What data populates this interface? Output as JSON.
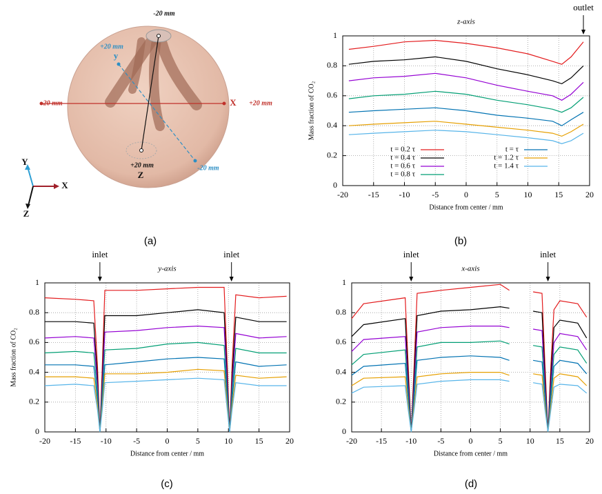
{
  "panel_a": {
    "labels": [
      "-20 mm",
      "+20 mm",
      "y",
      "-20 mm",
      "X",
      "+20 mm",
      "-20 mm",
      "+20 mm",
      "Z",
      "Y",
      "X",
      "Z"
    ]
  },
  "captions": [
    "(a)",
    "(b)",
    "(c)",
    "(d)"
  ],
  "chart_data": [
    {
      "type": "line",
      "title": "z-axis",
      "y_label": "Mass fraction of CO₂",
      "x_label": "Distance from center / mm",
      "xlim": [
        -20,
        20
      ],
      "xticks": [
        -20,
        -15,
        -10,
        -5,
        0,
        5,
        10,
        15,
        20
      ],
      "ylim": [
        0,
        1
      ],
      "yticks": [
        0,
        0.2,
        0.4,
        0.6,
        0.8,
        1
      ],
      "grid": true,
      "legend": "bottom",
      "annotations": [
        {
          "text": "outlet",
          "x": 19
        }
      ],
      "x": [
        -19,
        -15,
        -10,
        -5,
        0,
        5,
        10,
        14,
        15.5,
        17,
        19
      ],
      "series": [
        {
          "name": "t = 0.2 τ",
          "color": "#e31a1c",
          "values": [
            0.91,
            0.93,
            0.96,
            0.97,
            0.95,
            0.92,
            0.88,
            0.83,
            0.81,
            0.86,
            0.96
          ]
        },
        {
          "name": "t = 0.4 τ",
          "color": "#000000",
          "values": [
            0.81,
            0.83,
            0.84,
            0.86,
            0.83,
            0.78,
            0.74,
            0.7,
            0.68,
            0.72,
            0.8
          ]
        },
        {
          "name": "t = 0.6 τ",
          "color": "#9400d3",
          "values": [
            0.7,
            0.72,
            0.73,
            0.75,
            0.72,
            0.67,
            0.63,
            0.6,
            0.57,
            0.61,
            0.69
          ]
        },
        {
          "name": "t = 0.8 τ",
          "color": "#009e73",
          "values": [
            0.58,
            0.6,
            0.61,
            0.63,
            0.61,
            0.57,
            0.54,
            0.51,
            0.49,
            0.52,
            0.59
          ]
        },
        {
          "name": "t = τ",
          "color": "#0072b2",
          "values": [
            0.49,
            0.5,
            0.51,
            0.52,
            0.5,
            0.47,
            0.45,
            0.43,
            0.4,
            0.44,
            0.49
          ]
        },
        {
          "name": "t = 1.2 τ",
          "color": "#e69f00",
          "values": [
            0.4,
            0.41,
            0.42,
            0.43,
            0.41,
            0.39,
            0.37,
            0.35,
            0.33,
            0.36,
            0.41
          ]
        },
        {
          "name": "t = 1.4 τ",
          "color": "#56b4e9",
          "values": [
            0.34,
            0.35,
            0.36,
            0.37,
            0.36,
            0.34,
            0.32,
            0.3,
            0.28,
            0.3,
            0.35
          ]
        }
      ]
    },
    {
      "type": "line",
      "title": "y-axis",
      "y_label": "Mass fraction of CO₂",
      "x_label": "Distance from center / mm",
      "xlim": [
        -20,
        20
      ],
      "xticks": [
        -20,
        -15,
        -10,
        -5,
        0,
        5,
        10,
        15,
        20
      ],
      "ylim": [
        0,
        1
      ],
      "yticks": [
        0,
        0.2,
        0.4,
        0.6,
        0.8,
        1
      ],
      "grid": true,
      "annotations": [
        {
          "text": "inlet",
          "x": -11
        },
        {
          "text": "inlet",
          "x": 10.5
        }
      ],
      "x": [
        -20,
        -15,
        -12,
        -11.4,
        -11,
        -10.6,
        -10.2,
        -5,
        0,
        5,
        9.3,
        9.8,
        10.2,
        10.6,
        11.2,
        15,
        19.5
      ],
      "series": [
        {
          "color": "#e31a1c",
          "values": [
            0.9,
            0.89,
            0.88,
            0.45,
            0,
            0.45,
            0.95,
            0.95,
            0.96,
            0.97,
            0.97,
            0.45,
            0,
            0.45,
            0.92,
            0.9,
            0.91
          ]
        },
        {
          "color": "#000000",
          "values": [
            0.74,
            0.74,
            0.73,
            0.37,
            0,
            0.37,
            0.78,
            0.78,
            0.8,
            0.82,
            0.8,
            0.37,
            0,
            0.37,
            0.77,
            0.74,
            0.74
          ]
        },
        {
          "color": "#9400d3",
          "values": [
            0.63,
            0.64,
            0.63,
            0.32,
            0,
            0.32,
            0.67,
            0.68,
            0.7,
            0.71,
            0.7,
            0.32,
            0,
            0.32,
            0.66,
            0.63,
            0.64
          ]
        },
        {
          "color": "#009e73",
          "values": [
            0.53,
            0.54,
            0.53,
            0.27,
            0,
            0.27,
            0.55,
            0.56,
            0.59,
            0.6,
            0.58,
            0.27,
            0,
            0.27,
            0.56,
            0.53,
            0.53
          ]
        },
        {
          "color": "#0072b2",
          "values": [
            0.45,
            0.45,
            0.44,
            0.22,
            0,
            0.22,
            0.45,
            0.47,
            0.49,
            0.5,
            0.49,
            0.22,
            0,
            0.22,
            0.47,
            0.44,
            0.45
          ]
        },
        {
          "color": "#e69f00",
          "values": [
            0.37,
            0.37,
            0.36,
            0.18,
            0,
            0.18,
            0.39,
            0.39,
            0.4,
            0.42,
            0.41,
            0.18,
            0,
            0.18,
            0.38,
            0.36,
            0.37
          ]
        },
        {
          "color": "#56b4e9",
          "values": [
            0.31,
            0.32,
            0.31,
            0.15,
            0,
            0.15,
            0.33,
            0.34,
            0.35,
            0.36,
            0.35,
            0.15,
            0,
            0.15,
            0.33,
            0.31,
            0.31
          ]
        }
      ]
    },
    {
      "type": "line",
      "title": "x-axis",
      "x_label": "Distance from center / mm",
      "xlim": [
        -20,
        20
      ],
      "xticks": [
        -20,
        -15,
        -10,
        -5,
        0,
        5,
        10,
        15,
        20
      ],
      "ylim": [
        0,
        1
      ],
      "yticks": [
        0,
        0.2,
        0.4,
        0.6,
        0.8,
        1
      ],
      "grid": true,
      "annotations": [
        {
          "text": "inlet",
          "x": -10
        },
        {
          "text": "inlet",
          "x": 13
        }
      ],
      "x": [
        -20,
        -18,
        -11,
        -10.5,
        -10,
        -9.5,
        -9,
        -5,
        0,
        5,
        6.5,
        8,
        10.5,
        12,
        12.5,
        13,
        13.5,
        14,
        15,
        18,
        19.5
      ],
      "series": [
        {
          "color": "#e31a1c",
          "values": [
            0.76,
            0.86,
            0.9,
            0.45,
            0,
            0.45,
            0.93,
            0.95,
            0.97,
            0.99,
            0.95,
            null,
            0.94,
            0.93,
            0.45,
            0,
            0.45,
            0.82,
            0.88,
            0.86,
            0.77
          ]
        },
        {
          "color": "#000000",
          "values": [
            0.64,
            0.72,
            0.76,
            0.38,
            0,
            0.38,
            0.78,
            0.81,
            0.82,
            0.84,
            0.83,
            null,
            0.81,
            0.8,
            0.38,
            0,
            0.38,
            0.7,
            0.75,
            0.73,
            0.63
          ]
        },
        {
          "color": "#9400d3",
          "values": [
            0.54,
            0.62,
            0.64,
            0.32,
            0,
            0.32,
            0.67,
            0.7,
            0.71,
            0.71,
            0.7,
            null,
            0.69,
            0.68,
            0.32,
            0,
            0.32,
            0.6,
            0.66,
            0.64,
            0.55
          ]
        },
        {
          "color": "#009e73",
          "values": [
            0.45,
            0.52,
            0.55,
            0.27,
            0,
            0.27,
            0.57,
            0.6,
            0.6,
            0.61,
            0.59,
            null,
            0.58,
            0.57,
            0.27,
            0,
            0.27,
            0.52,
            0.57,
            0.55,
            0.46
          ]
        },
        {
          "color": "#0072b2",
          "values": [
            0.38,
            0.44,
            0.46,
            0.23,
            0,
            0.23,
            0.48,
            0.5,
            0.51,
            0.5,
            0.48,
            null,
            0.48,
            0.47,
            0.23,
            0,
            0.23,
            0.44,
            0.48,
            0.46,
            0.39
          ]
        },
        {
          "color": "#e69f00",
          "values": [
            0.31,
            0.36,
            0.37,
            0.18,
            0,
            0.18,
            0.37,
            0.39,
            0.4,
            0.4,
            0.38,
            null,
            0.39,
            0.38,
            0.18,
            0,
            0.18,
            0.36,
            0.39,
            0.37,
            0.31
          ]
        },
        {
          "color": "#56b4e9",
          "values": [
            0.26,
            0.3,
            0.31,
            0.15,
            0,
            0.15,
            0.32,
            0.34,
            0.35,
            0.35,
            0.34,
            null,
            0.33,
            0.32,
            0.15,
            0,
            0.15,
            0.3,
            0.32,
            0.31,
            0.26
          ]
        }
      ]
    }
  ]
}
